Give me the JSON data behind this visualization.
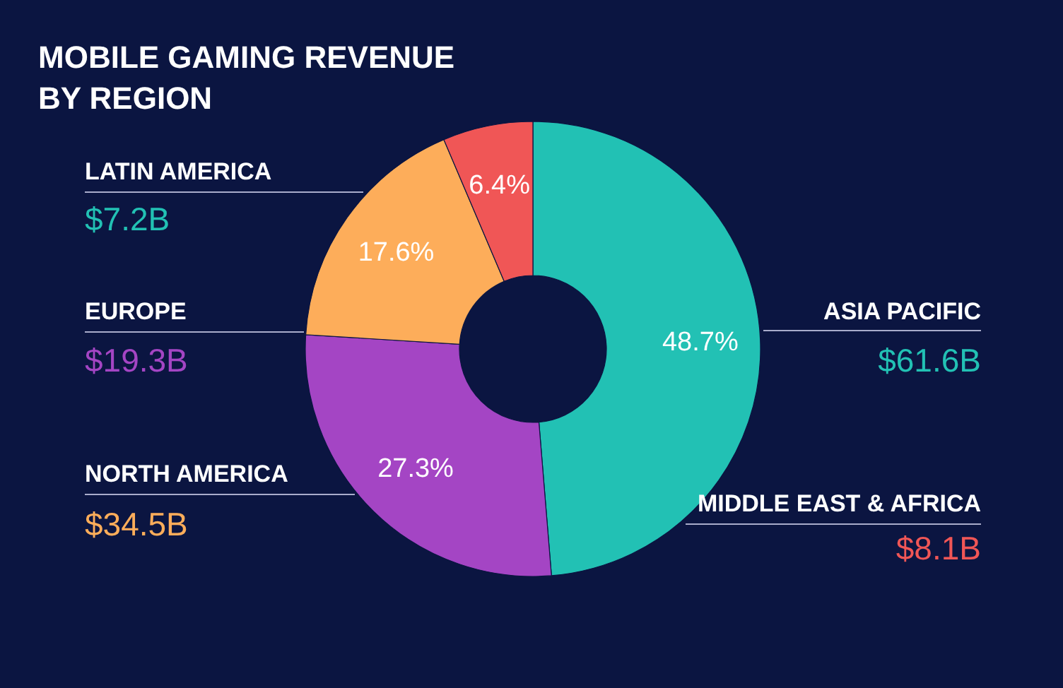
{
  "chart_data": {
    "type": "donut",
    "title": "MOBILE GAMING REVENUE BY REGION",
    "categories": [
      null,
      null,
      null,
      null
    ],
    "values": [
      48.7,
      27.3,
      17.6,
      6.4
    ],
    "colors": [
      "#22c1b4",
      "#a445c4",
      "#fdad5a",
      "#f05656"
    ],
    "value_labels": [
      "48.7%",
      "27.3%",
      "17.6%",
      "6.4%"
    ],
    "annotations": [
      "LATIN AMERICA",
      "$7.2B",
      "EUROPE",
      "$19.3B",
      "NORTH AMERICA",
      "$34.5B",
      "ASIA PACIFIC",
      "$61.6B",
      "MIDDLE EAST & AFRICA",
      "$8.1B"
    ]
  }
}
